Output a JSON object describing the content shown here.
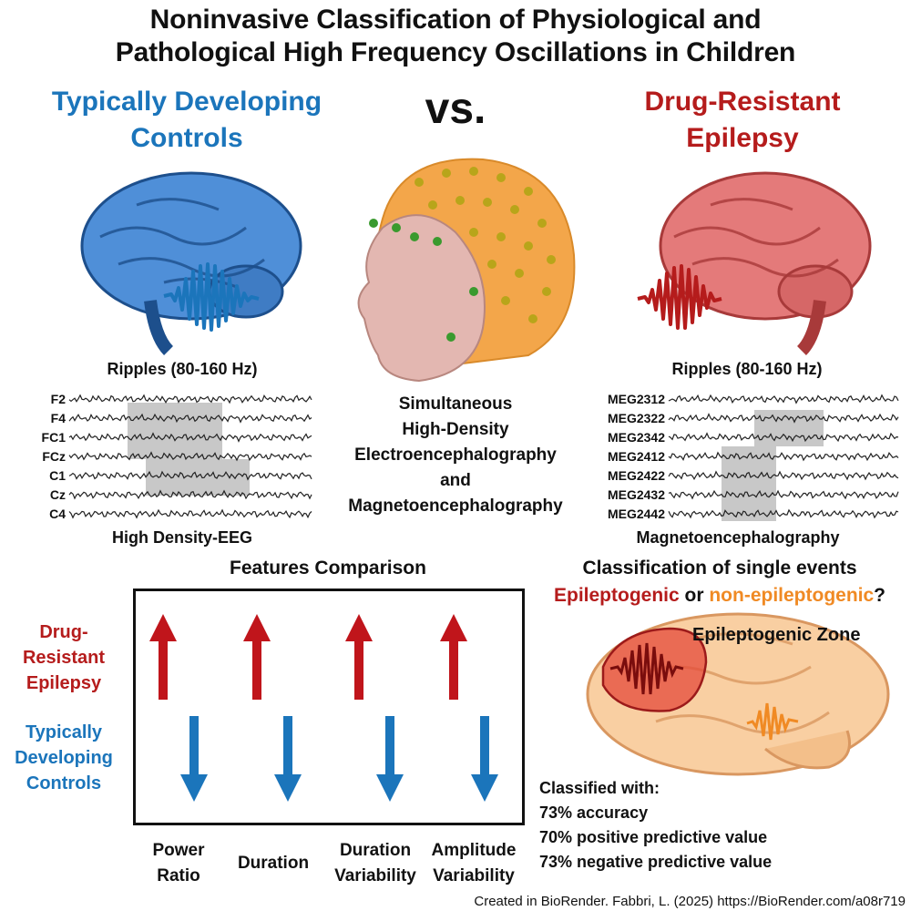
{
  "title": {
    "line1": "Noninvasive Classification of Physiological and",
    "line2": "Pathological High Frequency Oscillations in Children"
  },
  "left_group": {
    "line1": "Typically Developing",
    "line2": "Controls"
  },
  "vs_label": "vs.",
  "right_group": {
    "line1": "Drug-Resistant",
    "line2": "Epilepsy"
  },
  "left_ripples_label": "Ripples (80-160 Hz)",
  "right_ripples_label": "Ripples (80-160 Hz)",
  "eeg_channels": [
    "F2",
    "F4",
    "FC1",
    "FCz",
    "C1",
    "Cz",
    "C4"
  ],
  "eeg_label": "High Density-EEG",
  "meg_channels": [
    "MEG2312",
    "MEG2322",
    "MEG2342",
    "MEG2412",
    "MEG2422",
    "MEG2432",
    "MEG2442"
  ],
  "meg_label": "Magnetoencephalography",
  "center_text": [
    "Simultaneous",
    "High-Density",
    "Electroencephalography",
    "and",
    "Magnetoencephalography"
  ],
  "features": {
    "title": "Features Comparison",
    "row_dre": [
      "Drug-",
      "Resistant",
      "Epilepsy"
    ],
    "row_tdc": [
      "Typically",
      "Developing",
      "Controls"
    ],
    "columns": [
      {
        "line1": "Power",
        "line2": "Ratio"
      },
      {
        "line1": "Duration",
        "line2": ""
      },
      {
        "line1": "Duration",
        "line2": "Variability"
      },
      {
        "line1": "Amplitude",
        "line2": "Variability"
      }
    ]
  },
  "classification": {
    "title": "Classification of single events",
    "option_a": "Epileptogenic",
    "connector": " or ",
    "option_b": "non-epileptogenic",
    "question_mark": "?",
    "zone_label": "Epileptogenic Zone",
    "results_heading": "Classified with:",
    "results": [
      "73% accuracy",
      "70% positive predictive value",
      "73% negative predictive value"
    ]
  },
  "credit": "Created in BioRender. Fabbri, L. (2025) https://BioRender.com/a08r719",
  "colors": {
    "blue": "#1b75bb",
    "red": "#b51c1c",
    "orange": "#f08a24",
    "highlight": "#c8c8c8"
  }
}
